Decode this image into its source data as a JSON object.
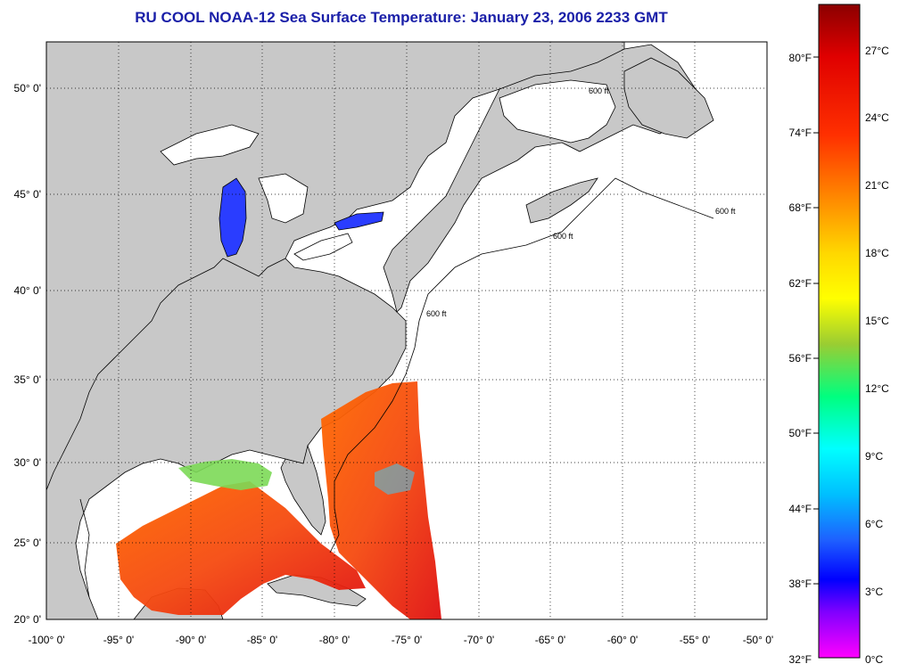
{
  "title": "RU COOL  NOAA-12  Sea Surface Temperature:  January 23, 2006 2233 GMT",
  "map": {
    "lon_labels": [
      "-100° 0'",
      "-95° 0'",
      "-90° 0'",
      "-85° 0'",
      "-80° 0'",
      "-75° 0'",
      "-70° 0'",
      "-65° 0'",
      "-60° 0'",
      "-55° 0'",
      "-50° 0'"
    ],
    "lat_labels": [
      "50° 0'",
      "45° 0'",
      "40° 0'",
      "35° 0'",
      "30° 0'",
      "25° 0'",
      "20° 0'"
    ],
    "contour_label": "600 ft",
    "colors": {
      "land": "#c8c8c8",
      "ocean": "#ffffff",
      "grid": "#000000"
    }
  },
  "colorbar": {
    "fahrenheit_labels": [
      "80°F",
      "74°F",
      "68°F",
      "62°F",
      "56°F",
      "50°F",
      "44°F",
      "38°F",
      "32°F"
    ],
    "celsius_labels": [
      "27°C",
      "24°C",
      "21°C",
      "18°C",
      "15°C",
      "12°C",
      "9°C",
      "6°C",
      "3°C",
      "0°C"
    ],
    "gradient_colors": [
      "#8b0000",
      "#e00000",
      "#ff4500",
      "#ff8c00",
      "#ffd700",
      "#ffff00",
      "#9acd32",
      "#00ff7f",
      "#00ffff",
      "#00bfff",
      "#1e90ff",
      "#0000ff",
      "#8000ff",
      "#ff00ff"
    ]
  }
}
